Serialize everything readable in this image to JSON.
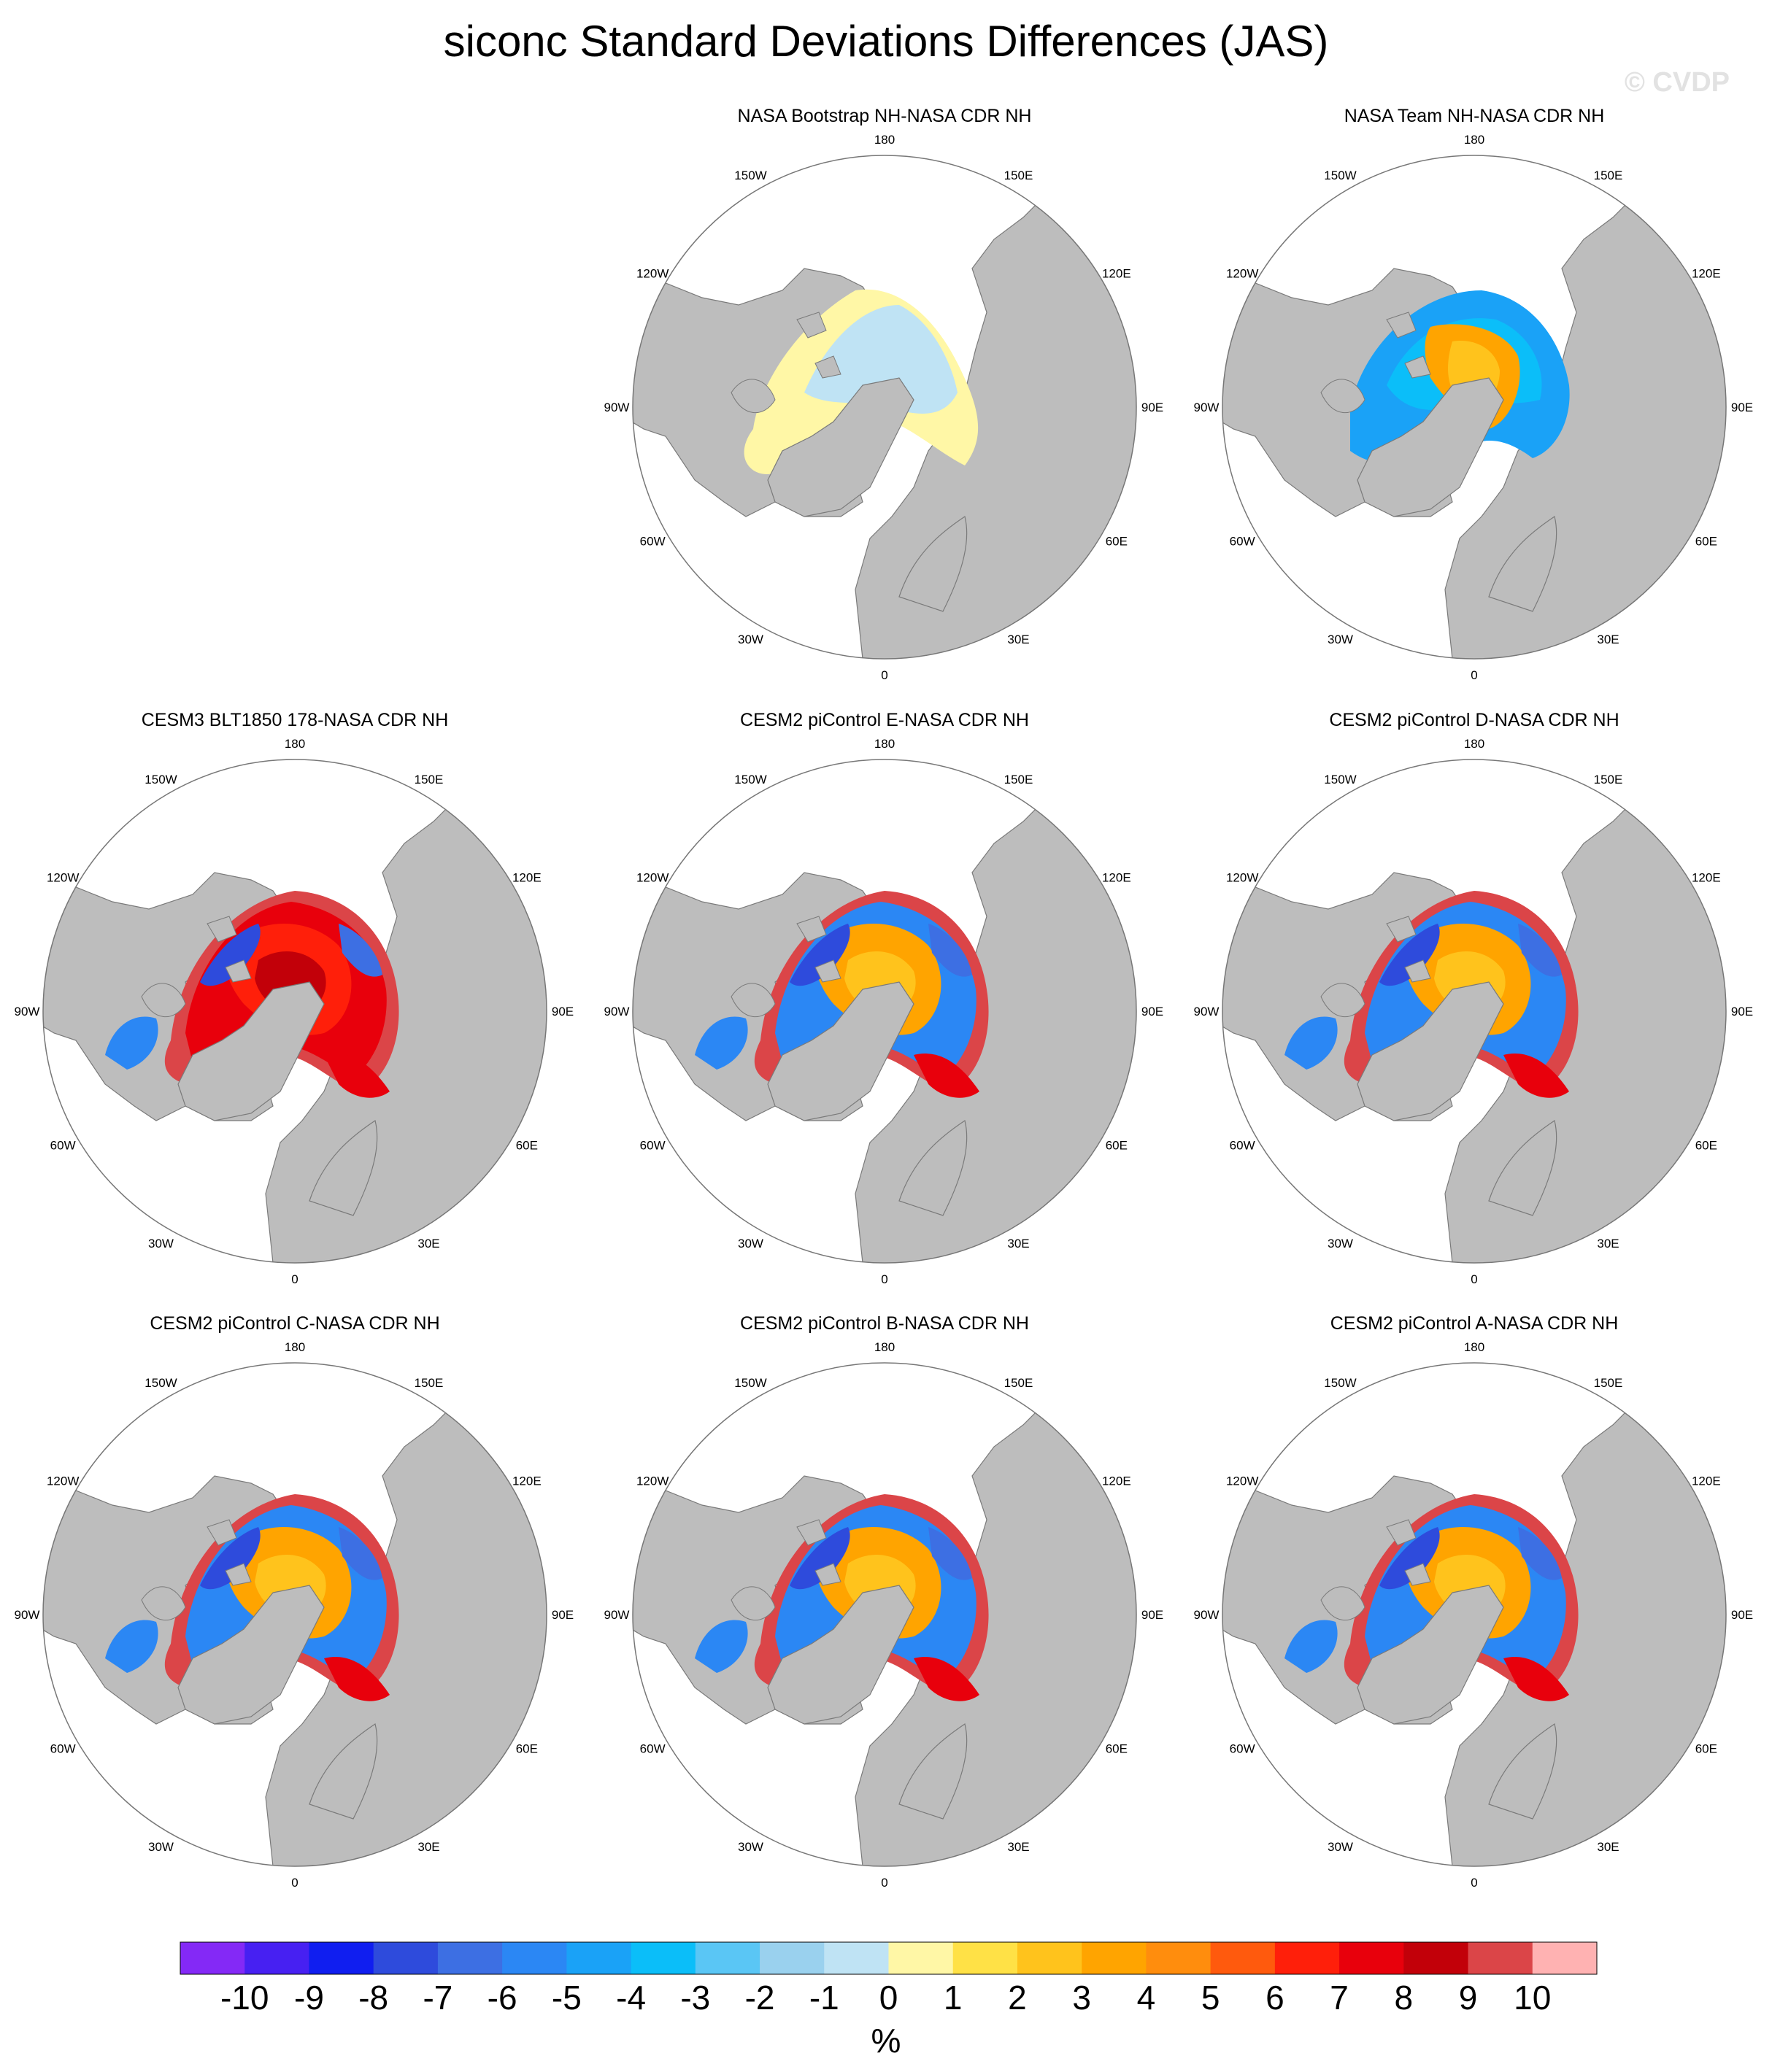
{
  "title": "siconc Standard Deviations Differences (JAS)",
  "watermark": "© CVDP",
  "colors": {
    "land": "#bdbdbd",
    "ocean": "#ffffff",
    "outline": "#7a7a7a"
  },
  "chart_data": {
    "type": "heatmap",
    "projection": "north-polar-stereographic",
    "units": "%",
    "longitude_labels": [
      "180",
      "150E",
      "120E",
      "90E",
      "60E",
      "30E",
      "0",
      "30W",
      "60W",
      "90W",
      "120W",
      "150W"
    ],
    "colorbar": {
      "ticks": [
        "-10",
        "-9",
        "-8",
        "-7",
        "-6",
        "-5",
        "-4",
        "-3",
        "-2",
        "-1",
        "0",
        "1",
        "2",
        "3",
        "4",
        "5",
        "6",
        "7",
        "8",
        "9",
        "10"
      ],
      "colors": [
        "#8429f6",
        "#4720f2",
        "#101ef0",
        "#2e4bdc",
        "#3d6fe3",
        "#2b87f4",
        "#1aa2f7",
        "#0bbef9",
        "#5ac6f5",
        "#9ad1ee",
        "#bfe3f4",
        "#fff7a6",
        "#ffe146",
        "#ffc31c",
        "#ffa400",
        "#ff8d0d",
        "#ff5a0d",
        "#ff1f0a",
        "#e8000c",
        "#c20009",
        "#db4548",
        "#ffb2b2"
      ]
    },
    "panels": [
      {
        "title": "NASA Bootstrap NH-NASA CDR NH",
        "pattern": "bootstrap"
      },
      {
        "title": "NASA Team NH-NASA CDR NH",
        "pattern": "team"
      },
      {
        "title": "CESM3 BLT1850 178-NASA CDR NH",
        "pattern": "cesm3"
      },
      {
        "title": "CESM2 piControl E-NASA CDR NH",
        "pattern": "picontrol"
      },
      {
        "title": "CESM2 piControl D-NASA CDR NH",
        "pattern": "picontrol"
      },
      {
        "title": "CESM2 piControl C-NASA CDR NH",
        "pattern": "picontrol"
      },
      {
        "title": "CESM2 piControl B-NASA CDR NH",
        "pattern": "picontrol"
      },
      {
        "title": "CESM2 piControl A-NASA CDR NH",
        "pattern": "picontrol"
      }
    ]
  }
}
